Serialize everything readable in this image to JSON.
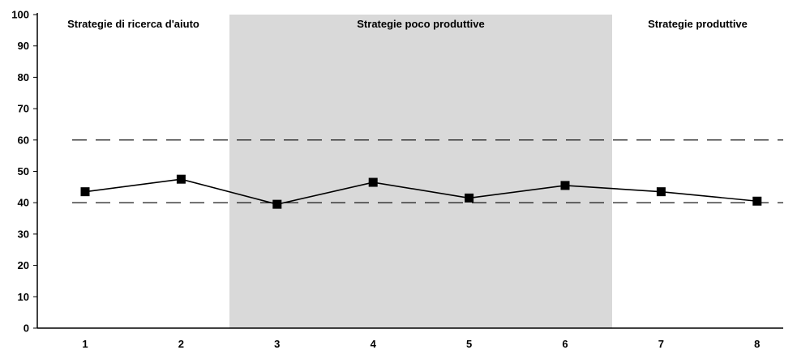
{
  "chart_data": {
    "type": "line",
    "categories": [
      "1",
      "2",
      "3",
      "4",
      "5",
      "6",
      "7",
      "8"
    ],
    "series": [
      {
        "values": [
          43.5,
          47.5,
          39.5,
          46.5,
          41.5,
          45.5,
          43.5,
          40.5
        ]
      }
    ],
    "ylim": [
      0,
      100
    ],
    "yticks": [
      "0",
      "10",
      "20",
      "30",
      "40",
      "50",
      "60",
      "70",
      "80",
      "90",
      "100"
    ],
    "reference_lines": [
      40,
      60
    ],
    "regions": [
      {
        "label": "Strategie di ricerca d'aiuto",
        "from_category": "1",
        "to_category": "2",
        "shaded": false
      },
      {
        "label": "Strategie poco produttive",
        "from_category": "3",
        "to_category": "6",
        "shaded": true
      },
      {
        "label": "Strategie produttive",
        "from_category": "7",
        "to_category": "8",
        "shaded": false
      }
    ],
    "grid": false,
    "colors": {
      "line": "#000000",
      "marker": "#000000",
      "shade": "#d9d9d9",
      "reference": "#000000"
    }
  }
}
